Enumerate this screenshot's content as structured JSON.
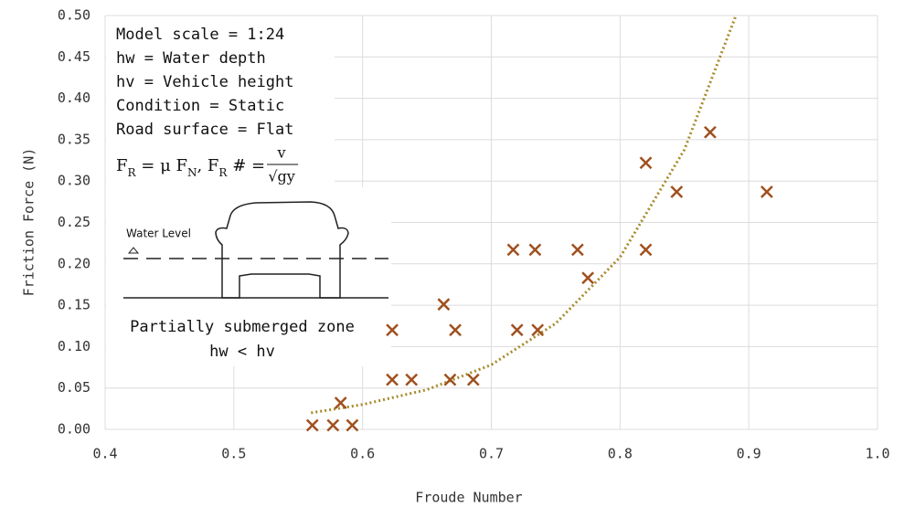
{
  "chart_data": {
    "type": "scatter",
    "x_label": "Froude Number",
    "y_label": "Friction Force (N)",
    "xlim": [
      0.4,
      1.0
    ],
    "xticks": [
      0.4,
      0.5,
      0.6,
      0.7,
      0.8,
      0.9,
      {
        "value": 1.0,
        "label": "1.0"
      }
    ],
    "ylim": [
      0,
      0.5
    ],
    "yticks": [
      {
        "value": 0,
        "label": "0.00"
      },
      {
        "value": 0.05,
        "label": "0.05"
      },
      {
        "value": 0.1,
        "label": "0.10"
      },
      {
        "value": 0.15,
        "label": "0.15"
      },
      {
        "value": 0.2,
        "label": "0.20"
      },
      {
        "value": 0.25,
        "label": "0.25"
      },
      {
        "value": 0.3,
        "label": "0.30"
      },
      {
        "value": 0.35,
        "label": "0.35"
      },
      {
        "value": 0.4,
        "label": "0.40"
      },
      {
        "value": 0.45,
        "label": "0.45"
      },
      {
        "value": 0.5,
        "label": "0.50"
      }
    ],
    "grid": true,
    "series": [
      {
        "color": "#a0501e",
        "x": [
          0.561,
          0.577,
          0.592,
          0.583,
          0.623,
          0.623,
          0.638,
          0.663,
          0.672,
          0.668,
          0.686,
          0.717,
          0.734,
          0.72,
          0.736,
          0.767,
          0.775,
          0.82,
          0.82,
          0.844,
          0.87,
          0.914
        ],
        "values": [
          0.005,
          0.005,
          0.005,
          0.032,
          0.12,
          0.06,
          0.06,
          0.151,
          0.12,
          0.06,
          0.06,
          0.217,
          0.217,
          0.12,
          0.12,
          0.217,
          0.183,
          0.322,
          0.217,
          0.287,
          0.359,
          0.287
        ]
      }
    ],
    "trendline": {
      "color": "#a88a2a",
      "style": "dotted",
      "x": [
        0.56,
        0.6,
        0.65,
        0.7,
        0.75,
        0.8,
        0.85,
        0.89
      ],
      "values": [
        0.02,
        0.03,
        0.048,
        0.078,
        0.128,
        0.208,
        0.338,
        0.5
      ]
    },
    "annotations": [
      "Model scale = 1:24",
      "hw = Water depth",
      "hv = Vehicle height",
      "Condition = Static",
      "Road surface = Flat"
    ],
    "formula": {
      "parts": [
        "F",
        "R",
        " = μ F",
        "N",
        ", F",
        "R",
        " # = "
      ],
      "subscript": [
        false,
        true,
        false,
        true,
        false,
        true,
        false
      ],
      "numerator": "v",
      "denominator": "√gy"
    },
    "diagram_label": "Water Level",
    "caption": [
      "Partially submerged zone",
      "hw < hv"
    ]
  }
}
